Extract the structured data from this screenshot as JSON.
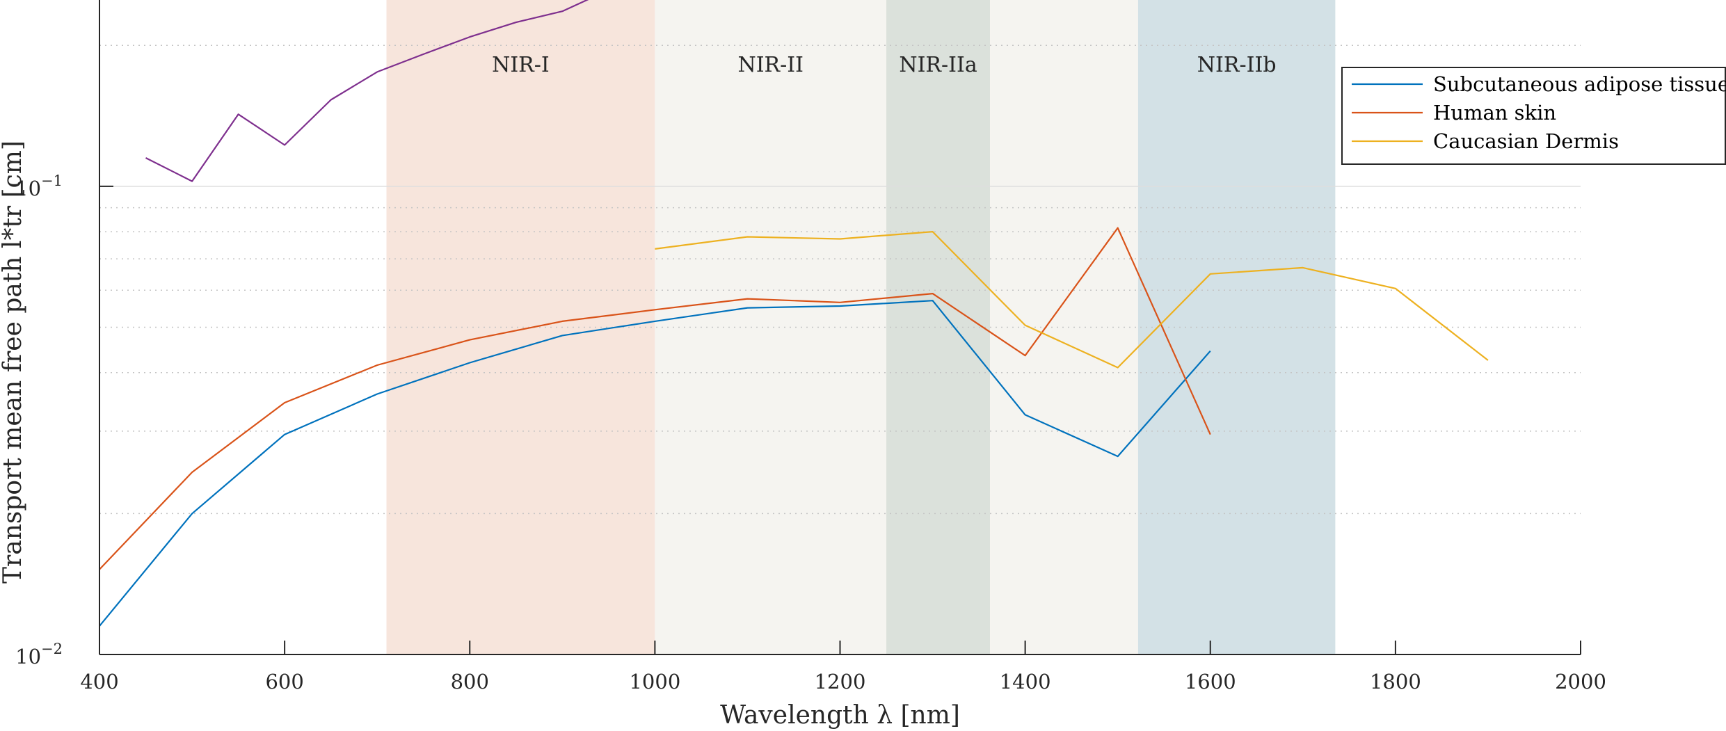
{
  "chart_data": {
    "type": "line",
    "title": "",
    "xlabel": "Wavelength λ [nm]",
    "ylabel": "Transport mean free path l*tr [cm]",
    "xlim": [
      400,
      2000
    ],
    "ylim": [
      0.01,
      0.25
    ],
    "yscale": "log",
    "x_ticks": [
      400,
      600,
      800,
      1000,
      1200,
      1400,
      1600,
      1800,
      2000
    ],
    "x_tick_labels": [
      "400",
      "600",
      "800",
      "1000",
      "1200",
      "1400",
      "1600",
      "1800",
      "2000"
    ],
    "y_ticks": [
      0.01,
      0.1
    ],
    "y_tick_labels": [
      {
        "base": "10",
        "exp": "−2"
      },
      {
        "base": "10",
        "exp": "−1"
      }
    ],
    "grid": "y-minor-dotted",
    "legend_position": "top-right",
    "bands": [
      {
        "label": "NIR-I",
        "from": 710,
        "to": 1000,
        "color": "#f7e5dc"
      },
      {
        "label": "NIR-II",
        "from": 1000,
        "to": 1250,
        "color": "#f5f4f0"
      },
      {
        "label": "NIR-IIa",
        "from": 1250,
        "to": 1362,
        "color": "#dbe1db"
      },
      {
        "label": "",
        "from": 1362,
        "to": 1522,
        "color": "#f5f4f0"
      },
      {
        "label": "NIR-IIb",
        "from": 1522,
        "to": 1735,
        "color": "#d3e1e6"
      }
    ],
    "series": [
      {
        "name": "Subcutaneous adipose tissue",
        "color": "#0072BD",
        "in_legend": true,
        "x": [
          400,
          500,
          600,
          700,
          800,
          900,
          1000,
          1100,
          1200,
          1300,
          1400,
          1500,
          1600
        ],
        "y": [
          0.0115,
          0.02,
          0.0295,
          0.036,
          0.042,
          0.048,
          0.0515,
          0.055,
          0.0555,
          0.057,
          0.0325,
          0.0265,
          0.0445
        ]
      },
      {
        "name": "Human skin",
        "color": "#D95319",
        "in_legend": true,
        "x": [
          400,
          500,
          600,
          700,
          800,
          900,
          1000,
          1100,
          1200,
          1300,
          1400,
          1500,
          1600
        ],
        "y": [
          0.0152,
          0.0245,
          0.0345,
          0.0415,
          0.047,
          0.0515,
          0.0545,
          0.0575,
          0.0565,
          0.059,
          0.0435,
          0.0815,
          0.0295
        ]
      },
      {
        "name": "Caucasian Dermis",
        "color": "#EDB120",
        "in_legend": true,
        "x": [
          1000,
          1100,
          1200,
          1300,
          1400,
          1500,
          1600,
          1700,
          1800,
          1900
        ],
        "y": [
          0.0735,
          0.078,
          0.0772,
          0.08,
          0.0505,
          0.041,
          0.065,
          0.067,
          0.0605,
          0.0425
        ]
      },
      {
        "name": "",
        "color": "#7E2F8E",
        "in_legend": false,
        "x": [
          450,
          500,
          550,
          600,
          650,
          700,
          750,
          800,
          850,
          900,
          950
        ],
        "y": [
          0.115,
          0.1025,
          0.1425,
          0.1225,
          0.153,
          0.1755,
          0.1915,
          0.2085,
          0.224,
          0.2365,
          0.2625
        ]
      }
    ]
  }
}
